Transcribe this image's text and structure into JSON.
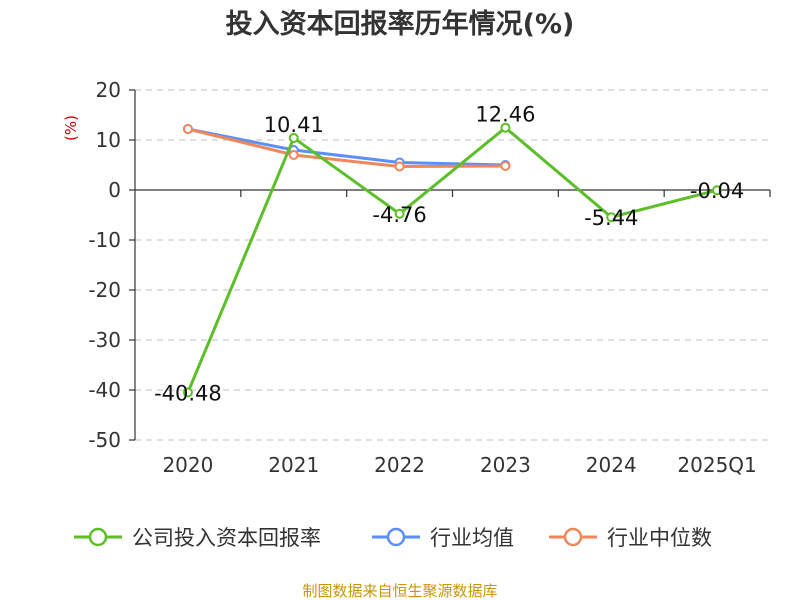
{
  "chart_data": {
    "type": "line",
    "title": "投入资本回报率历年情况(%)",
    "ylabel": "(%)",
    "categories": [
      "2020",
      "2021",
      "2022",
      "2023",
      "2024",
      "2025Q1"
    ],
    "y_ticks": [
      "20",
      "10",
      "0",
      "-10",
      "-20",
      "-30",
      "-40",
      "-50"
    ],
    "ylim": [
      -50,
      20
    ],
    "grid": true,
    "legend_position": "bottom",
    "series": [
      {
        "name": "公司投入资本回报率",
        "color": "#5cbf2a",
        "values": [
          -40.48,
          10.41,
          -4.76,
          12.46,
          -5.44,
          -0.04
        ],
        "labels": [
          "-40.48",
          "10.41",
          "-4.76",
          "12.46",
          "-5.44",
          "-0.04"
        ]
      },
      {
        "name": "行业均值",
        "color": "#5b8ff9",
        "values": [
          12.2,
          8.0,
          5.5,
          5.0,
          null,
          null
        ]
      },
      {
        "name": "行业中位数",
        "color": "#f0875a",
        "values": [
          12.2,
          7.0,
          4.7,
          4.8,
          null,
          null
        ]
      }
    ]
  },
  "source_text": "制图数据来自恒生聚源数据库"
}
